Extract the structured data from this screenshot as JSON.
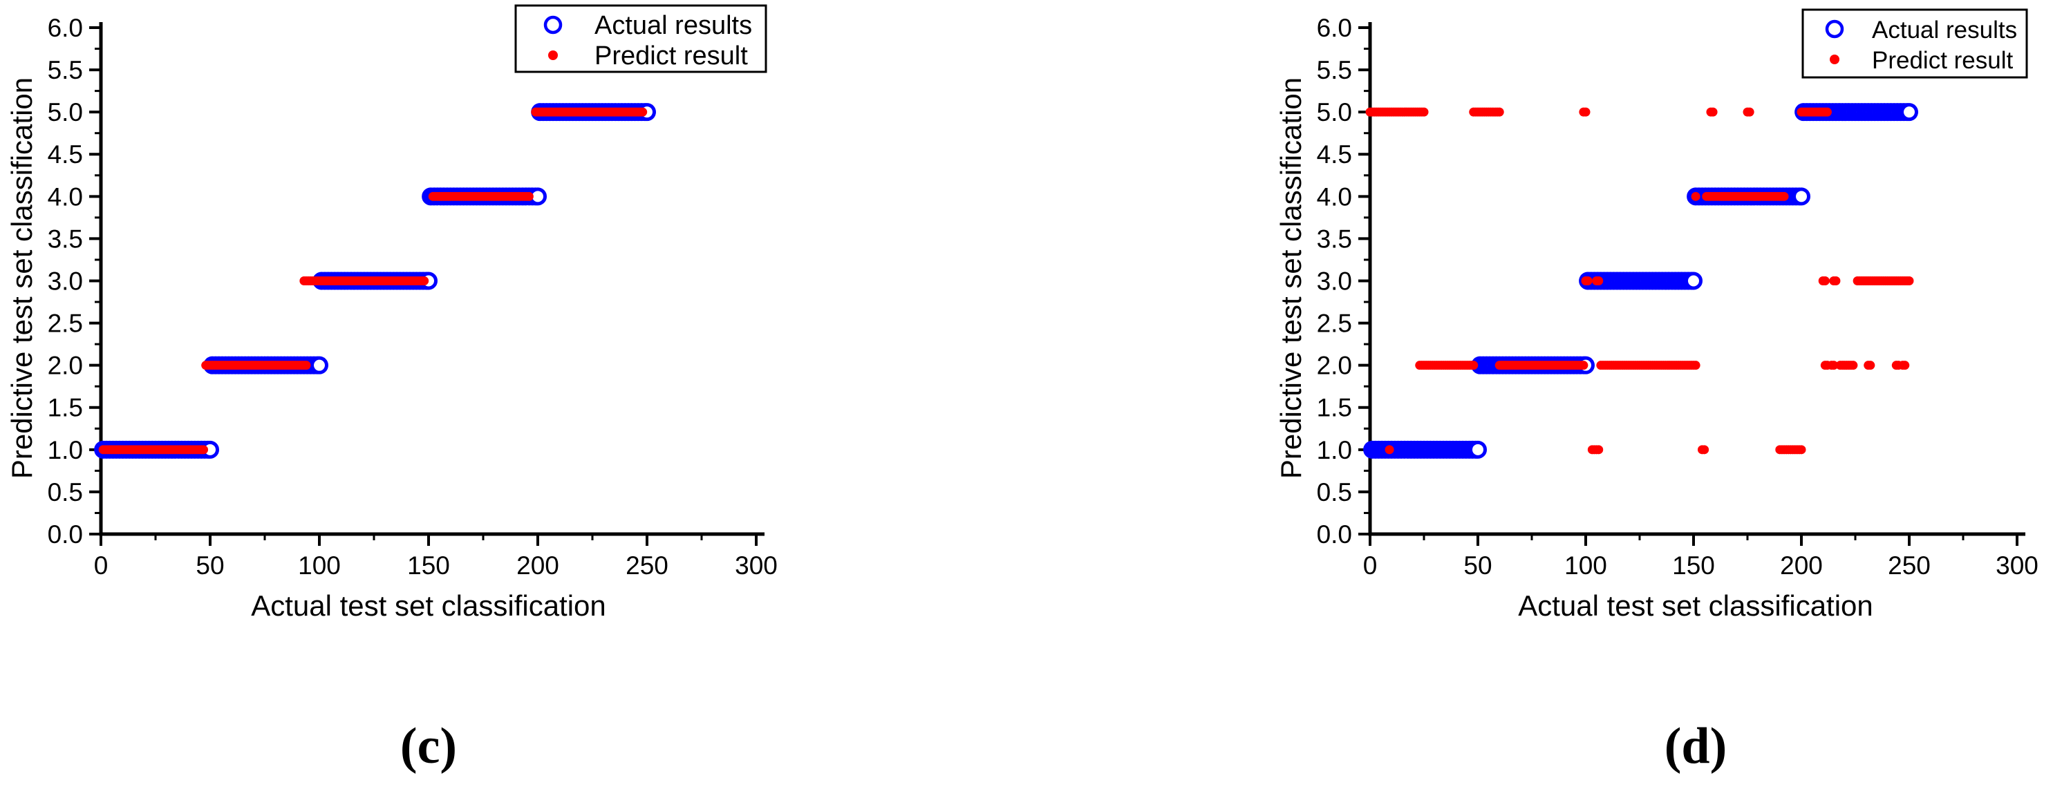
{
  "figure_caption_left": "(c)",
  "figure_caption_right": "(d)",
  "colors": {
    "actual": "#0000ff",
    "predict": "#ff0000",
    "axis": "#000000",
    "background": "#ffffff"
  },
  "chart_data": [
    {
      "type": "scatter",
      "title": "(c)",
      "xlabel": "Actual test set classification",
      "ylabel": "Predictive test set classification",
      "xlim": [
        0,
        300
      ],
      "ylim": [
        0.0,
        6.0
      ],
      "x_ticks": [
        0,
        50,
        100,
        150,
        200,
        250,
        300
      ],
      "x_minor_ticks": [
        25,
        75,
        125,
        175,
        225,
        275
      ],
      "y_tick_labels": [
        "0.0",
        "0.5",
        "1.0",
        "1.5",
        "2.0",
        "2.5",
        "3.0",
        "3.5",
        "4.0",
        "4.5",
        "5.0",
        "5.5",
        "6.0"
      ],
      "y_ticks": [
        0,
        0.5,
        1,
        1.5,
        2,
        2.5,
        3,
        3.5,
        4,
        4.5,
        5,
        5.5,
        6
      ],
      "y_minor_ticks": [
        0.25,
        0.75,
        1.25,
        1.75,
        2.25,
        2.75,
        3.25,
        3.75,
        4.25,
        4.75,
        5.25,
        5.75
      ],
      "legend": [
        {
          "name": "Actual results",
          "marker": "open-circle",
          "color": "#0000ff"
        },
        {
          "name": "Predict result",
          "marker": "dot",
          "color": "#ff0000"
        }
      ],
      "series": [
        {
          "name": "Actual results",
          "runs": [
            [
              1,
              50,
              1
            ],
            [
              51,
              100,
              2
            ],
            [
              101,
              150,
              3
            ],
            [
              151,
              200,
              4
            ],
            [
              201,
              250,
              5
            ]
          ]
        },
        {
          "name": "Predict result",
          "runs": [
            [
              1,
              47,
              1
            ],
            [
              48,
              94,
              2
            ],
            [
              93,
              148,
              3
            ],
            [
              152,
              196,
              4
            ],
            [
              199,
              248,
              5
            ]
          ]
        }
      ]
    },
    {
      "type": "scatter",
      "title": "(d)",
      "xlabel": "Actual test set classification",
      "ylabel": "Predictive test set classification",
      "xlim": [
        0,
        300
      ],
      "ylim": [
        0.0,
        6.0
      ],
      "x_ticks": [
        0,
        50,
        100,
        150,
        200,
        250,
        300
      ],
      "x_minor_ticks": [
        25,
        75,
        125,
        175,
        225,
        275
      ],
      "y_tick_labels": [
        "0.0",
        "0.5",
        "1.0",
        "1.5",
        "2.0",
        "2.5",
        "3.0",
        "3.5",
        "4.0",
        "4.5",
        "5.0",
        "5.5",
        "6.0"
      ],
      "y_ticks": [
        0,
        0.5,
        1,
        1.5,
        2,
        2.5,
        3,
        3.5,
        4,
        4.5,
        5,
        5.5,
        6
      ],
      "y_minor_ticks": [
        0.25,
        0.75,
        1.25,
        1.75,
        2.25,
        2.75,
        3.25,
        3.75,
        4.25,
        4.75,
        5.25,
        5.75
      ],
      "legend": [
        {
          "name": "Actual results",
          "marker": "open-circle",
          "color": "#0000ff"
        },
        {
          "name": "Predict result",
          "marker": "dot",
          "color": "#ff0000"
        }
      ],
      "series": [
        {
          "name": "Actual results",
          "runs": [
            [
              1,
              50,
              1
            ],
            [
              51,
              100,
              2
            ],
            [
              101,
              150,
              3
            ],
            [
              151,
              200,
              4
            ],
            [
              201,
              250,
              5
            ]
          ]
        },
        {
          "name": "Predict result",
          "runs": [
            [
              0,
              25,
              5
            ],
            [
              48,
              60,
              5
            ],
            [
              99,
              100,
              5
            ],
            [
              158,
              159,
              5
            ],
            [
              175,
              176,
              5
            ],
            [
              200,
              212,
              5
            ],
            [
              151,
              151,
              4
            ],
            [
              156,
              192,
              4
            ],
            [
              100,
              101,
              3
            ],
            [
              105,
              106,
              3
            ],
            [
              210,
              211,
              3
            ],
            [
              215,
              216,
              3
            ],
            [
              226,
              250,
              3
            ],
            [
              23,
              48,
              2
            ],
            [
              60,
              99,
              2
            ],
            [
              107,
              151,
              2
            ],
            [
              211,
              212,
              2
            ],
            [
              214,
              215,
              2
            ],
            [
              218,
              224,
              2
            ],
            [
              231,
              232,
              2
            ],
            [
              244,
              245,
              2
            ],
            [
              247,
              248,
              2
            ],
            [
              9,
              9,
              1
            ],
            [
              103,
              106,
              1
            ],
            [
              154,
              155,
              1
            ],
            [
              190,
              200,
              1
            ]
          ]
        }
      ]
    }
  ]
}
